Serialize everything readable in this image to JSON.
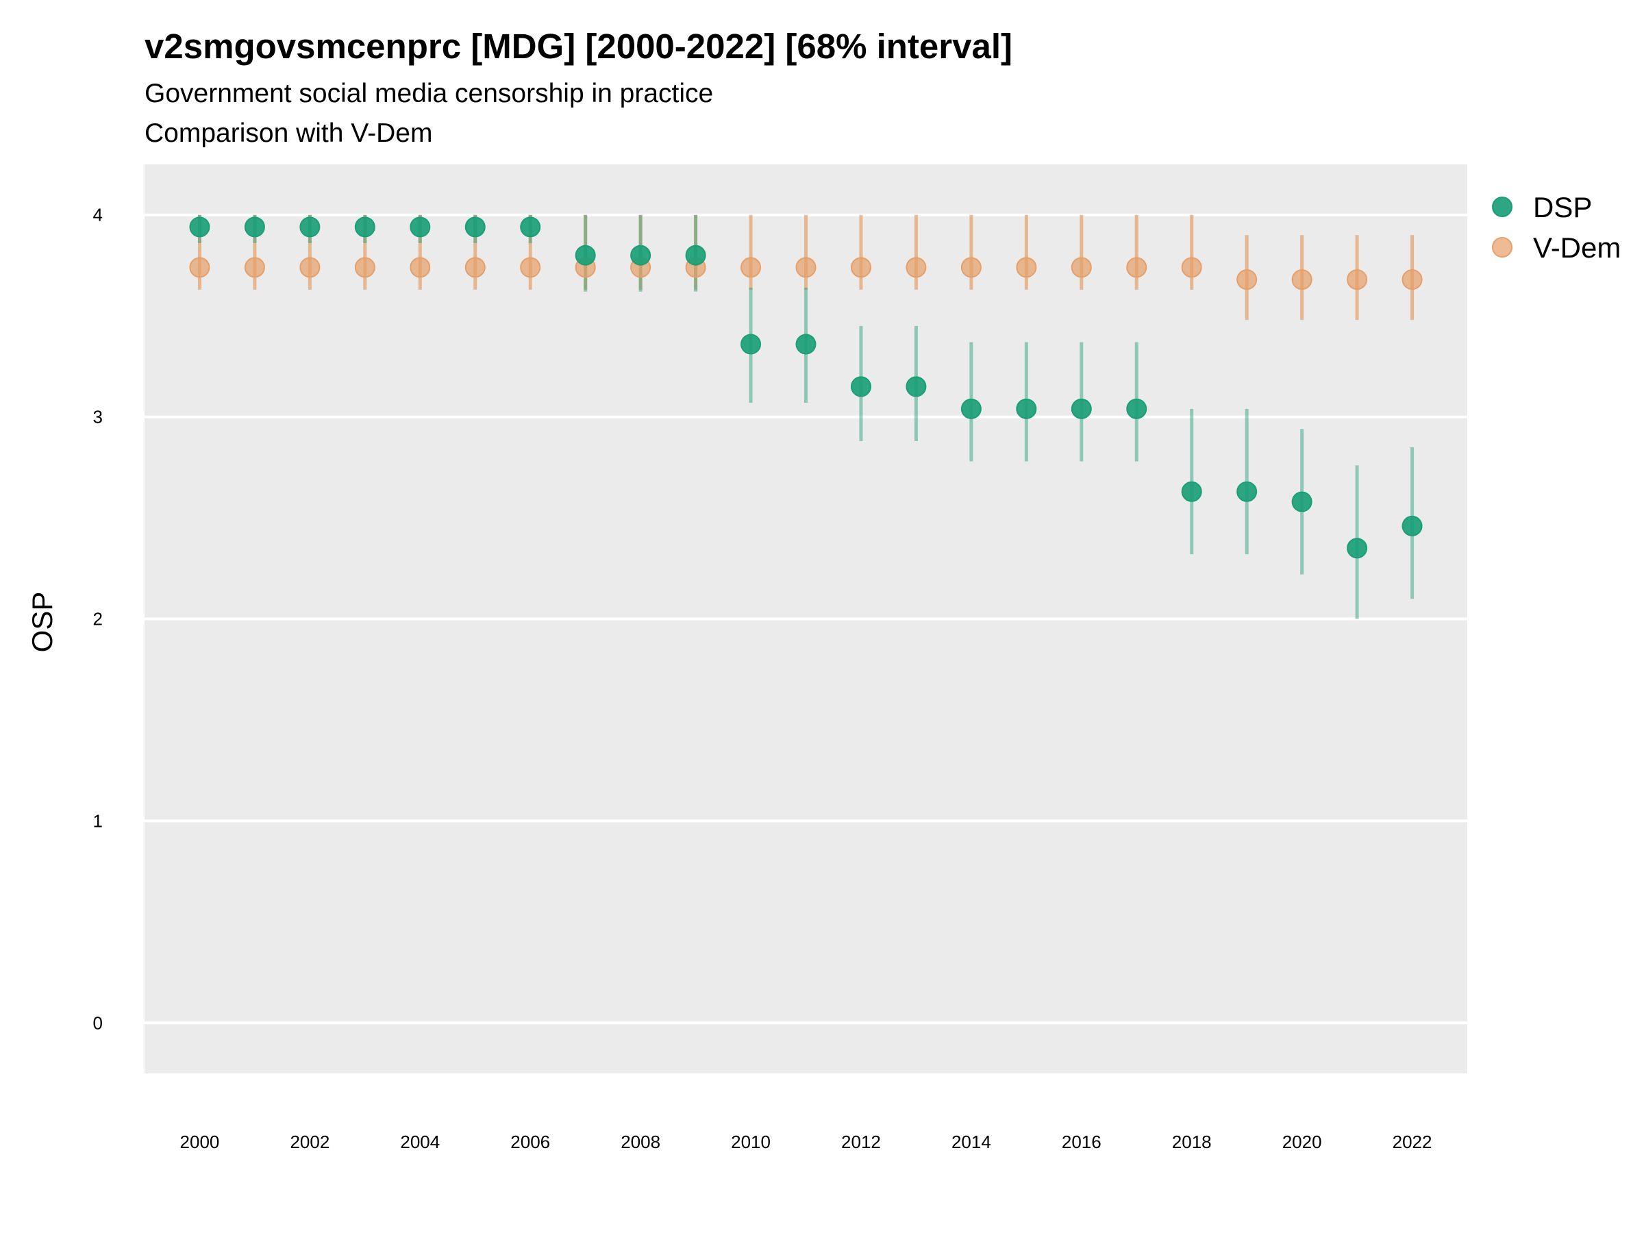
{
  "chart_data": {
    "type": "scatter",
    "title": "v2smgovsmcenprc [MDG] [2000-2022] [68% interval]",
    "subtitle": "Government social media censorship in practice",
    "subtitle2": "Comparison with V-Dem",
    "xlabel": "",
    "ylabel": "OSP",
    "ylim": [
      -0.25,
      4.25
    ],
    "xlim": [
      1999,
      2023
    ],
    "yticks": [
      0,
      1,
      2,
      3,
      4
    ],
    "xticks": [
      2000,
      2002,
      2004,
      2006,
      2008,
      2010,
      2012,
      2014,
      2016,
      2018,
      2020,
      2022
    ],
    "grid": true,
    "legend_position": "right",
    "x": [
      2000,
      2001,
      2002,
      2003,
      2004,
      2005,
      2006,
      2007,
      2008,
      2009,
      2010,
      2011,
      2012,
      2013,
      2014,
      2015,
      2016,
      2017,
      2018,
      2019,
      2020,
      2021,
      2022
    ],
    "series": [
      {
        "name": "DSP",
        "color": "#1b9e77",
        "values": [
          3.94,
          3.94,
          3.94,
          3.94,
          3.94,
          3.94,
          3.94,
          3.8,
          3.8,
          3.8,
          3.36,
          3.36,
          3.15,
          3.15,
          3.04,
          3.04,
          3.04,
          3.04,
          2.63,
          2.63,
          2.58,
          2.35,
          2.46
        ],
        "lower": [
          3.86,
          3.86,
          3.86,
          3.86,
          3.86,
          3.86,
          3.86,
          3.62,
          3.62,
          3.62,
          3.07,
          3.07,
          2.88,
          2.88,
          2.78,
          2.78,
          2.78,
          2.78,
          2.32,
          2.32,
          2.22,
          2.0,
          2.1
        ],
        "upper": [
          4.0,
          4.0,
          4.0,
          4.0,
          4.0,
          4.0,
          4.0,
          4.0,
          4.0,
          4.0,
          3.64,
          3.64,
          3.45,
          3.45,
          3.37,
          3.37,
          3.37,
          3.37,
          3.04,
          3.04,
          2.94,
          2.76,
          2.85
        ]
      },
      {
        "name": "V-Dem",
        "color": "#e69f68",
        "values": [
          3.74,
          3.74,
          3.74,
          3.74,
          3.74,
          3.74,
          3.74,
          3.74,
          3.74,
          3.74,
          3.74,
          3.74,
          3.74,
          3.74,
          3.74,
          3.74,
          3.74,
          3.74,
          3.74,
          3.68,
          3.68,
          3.68,
          3.68
        ],
        "lower": [
          3.63,
          3.63,
          3.63,
          3.63,
          3.63,
          3.63,
          3.63,
          3.63,
          3.63,
          3.63,
          3.63,
          3.63,
          3.63,
          3.63,
          3.63,
          3.63,
          3.63,
          3.63,
          3.63,
          3.48,
          3.48,
          3.48,
          3.48
        ],
        "upper": [
          4.0,
          4.0,
          4.0,
          4.0,
          4.0,
          4.0,
          4.0,
          4.0,
          4.0,
          4.0,
          4.0,
          4.0,
          4.0,
          4.0,
          4.0,
          4.0,
          4.0,
          4.0,
          4.0,
          3.9,
          3.9,
          3.9,
          3.9
        ]
      }
    ]
  }
}
